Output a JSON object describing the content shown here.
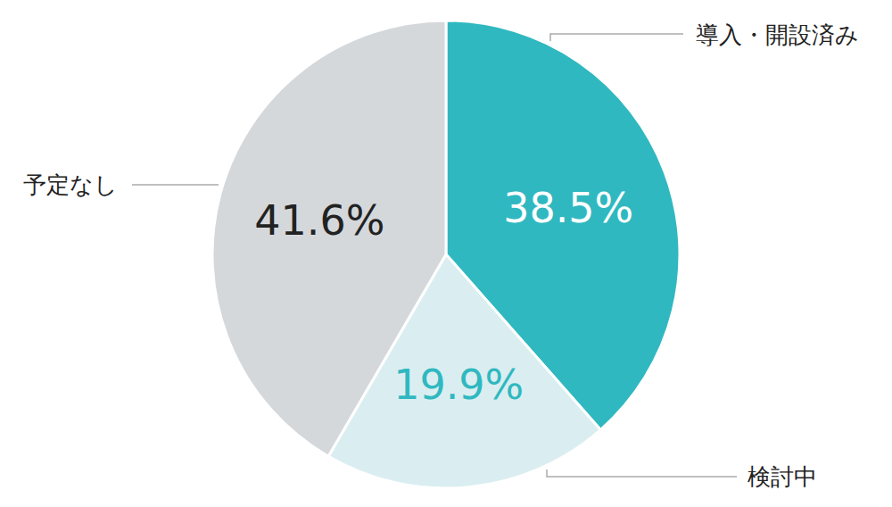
{
  "chart_data": {
    "type": "pie",
    "categories": [
      "導入・開設済み",
      "検討中",
      "予定なし"
    ],
    "values": [
      38.5,
      19.9,
      41.6
    ],
    "value_labels": [
      "38.5%",
      "19.9%",
      "41.6%"
    ],
    "colors": [
      "#2fb8c0",
      "#daeef1",
      "#d5d8db"
    ],
    "data_labels": true
  }
}
